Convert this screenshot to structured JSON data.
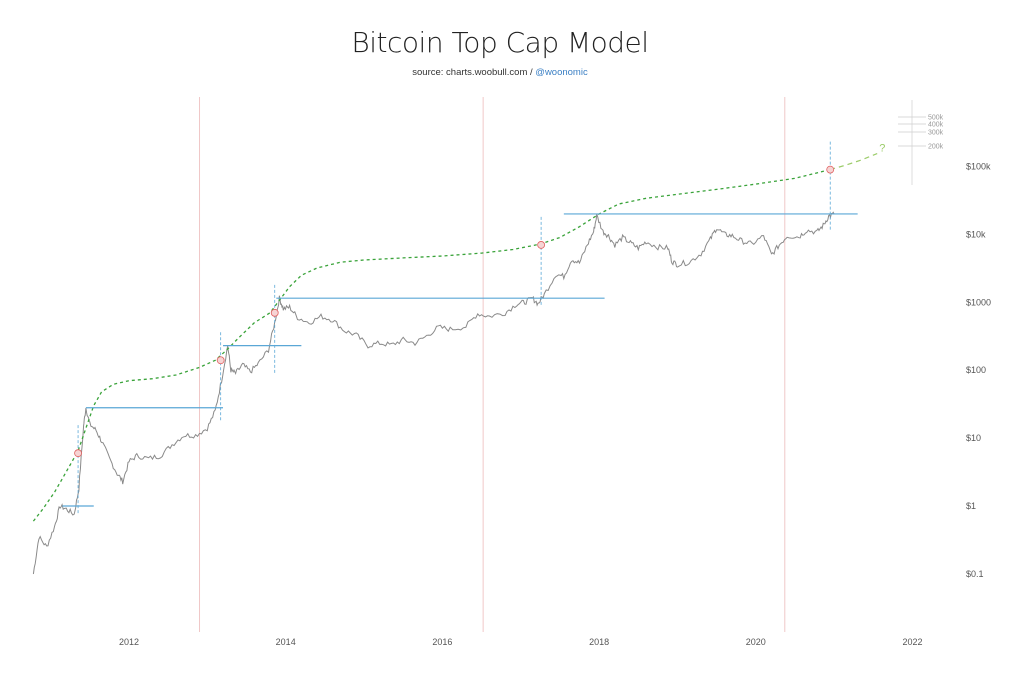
{
  "chart_data": {
    "type": "line",
    "title": "Bitcoin Top Cap Model",
    "subtitle_source": "source: charts.woobull.com /",
    "subtitle_handle": "@woonomic",
    "yscale": "log",
    "xlim": [
      2010.6,
      2022.4
    ],
    "ylim": [
      0.03,
      600000
    ],
    "x_ticks": [
      "2012",
      "2014",
      "2016",
      "2018",
      "2020",
      "2022"
    ],
    "x_tick_values": [
      2012,
      2014,
      2016,
      2018,
      2020,
      2022
    ],
    "y_ticks": [
      "$0.1",
      "$1",
      "$10",
      "$100",
      "$1000",
      "$10k",
      "$100k"
    ],
    "y_tick_values": [
      0.1,
      1,
      10,
      100,
      1000,
      10000,
      100000
    ],
    "projection_ticks": [
      "500k",
      "400k",
      "300k",
      "200k"
    ],
    "projection_tick_values": [
      500000,
      400000,
      300000,
      200000
    ],
    "projection_marker": "?",
    "grid": false,
    "halving_lines": [
      2012.9,
      2016.52,
      2020.37
    ],
    "colors": {
      "price": "#8a8a8a",
      "top_cap": "#3aa33a",
      "projection": "#9ccc6a",
      "resistance": "#5aa7d6",
      "halving": "#f0c8c8",
      "marker": "#e06060"
    },
    "series": [
      {
        "role": "price",
        "points": [
          [
            2010.78,
            0.1
          ],
          [
            2010.85,
            0.35
          ],
          [
            2010.95,
            0.25
          ],
          [
            2011.05,
            0.5
          ],
          [
            2011.12,
            1.0
          ],
          [
            2011.2,
            0.9
          ],
          [
            2011.3,
            0.75
          ],
          [
            2011.36,
            1.8
          ],
          [
            2011.42,
            15
          ],
          [
            2011.45,
            28
          ],
          [
            2011.5,
            16
          ],
          [
            2011.58,
            13
          ],
          [
            2011.65,
            9
          ],
          [
            2011.75,
            5
          ],
          [
            2011.85,
            3
          ],
          [
            2011.92,
            2.3
          ],
          [
            2012.0,
            4.5
          ],
          [
            2012.1,
            5.5
          ],
          [
            2012.25,
            5
          ],
          [
            2012.4,
            5.5
          ],
          [
            2012.55,
            8
          ],
          [
            2012.7,
            11
          ],
          [
            2012.85,
            11
          ],
          [
            2013.0,
            14
          ],
          [
            2013.1,
            25
          ],
          [
            2013.18,
            70
          ],
          [
            2013.26,
            230
          ],
          [
            2013.3,
            100
          ],
          [
            2013.36,
            90
          ],
          [
            2013.45,
            120
          ],
          [
            2013.55,
            95
          ],
          [
            2013.65,
            125
          ],
          [
            2013.78,
            200
          ],
          [
            2013.86,
            500
          ],
          [
            2013.92,
            1150
          ],
          [
            2013.97,
            800
          ],
          [
            2014.05,
            850
          ],
          [
            2014.15,
            600
          ],
          [
            2014.3,
            500
          ],
          [
            2014.45,
            620
          ],
          [
            2014.6,
            550
          ],
          [
            2014.75,
            380
          ],
          [
            2014.9,
            330
          ],
          [
            2015.05,
            230
          ],
          [
            2015.2,
            250
          ],
          [
            2015.35,
            235
          ],
          [
            2015.5,
            280
          ],
          [
            2015.65,
            250
          ],
          [
            2015.8,
            320
          ],
          [
            2015.95,
            430
          ],
          [
            2016.1,
            400
          ],
          [
            2016.3,
            440
          ],
          [
            2016.45,
            680
          ],
          [
            2016.6,
            620
          ],
          [
            2016.8,
            700
          ],
          [
            2016.95,
            950
          ],
          [
            2017.05,
            1000
          ],
          [
            2017.15,
            1150
          ],
          [
            2017.22,
            950
          ],
          [
            2017.3,
            1300
          ],
          [
            2017.45,
            2600
          ],
          [
            2017.55,
            2400
          ],
          [
            2017.65,
            4300
          ],
          [
            2017.75,
            3800
          ],
          [
            2017.85,
            7000
          ],
          [
            2017.93,
            11000
          ],
          [
            2017.97,
            19000
          ],
          [
            2018.05,
            11000
          ],
          [
            2018.12,
            9500
          ],
          [
            2018.2,
            7000
          ],
          [
            2018.3,
            9000
          ],
          [
            2018.4,
            7500
          ],
          [
            2018.5,
            6300
          ],
          [
            2018.6,
            7800
          ],
          [
            2018.75,
            6500
          ],
          [
            2018.88,
            6300
          ],
          [
            2018.93,
            4000
          ],
          [
            2019.0,
            3600
          ],
          [
            2019.15,
            3900
          ],
          [
            2019.3,
            5200
          ],
          [
            2019.42,
            8500
          ],
          [
            2019.5,
            12500
          ],
          [
            2019.6,
            10000
          ],
          [
            2019.7,
            9500
          ],
          [
            2019.82,
            8000
          ],
          [
            2019.95,
            7200
          ],
          [
            2020.1,
            9500
          ],
          [
            2020.2,
            5000
          ],
          [
            2020.3,
            7000
          ],
          [
            2020.4,
            9500
          ],
          [
            2020.55,
            9200
          ],
          [
            2020.65,
            11500
          ],
          [
            2020.78,
            10800
          ],
          [
            2020.86,
            13500
          ],
          [
            2020.93,
            18500
          ],
          [
            2021.0,
            20000
          ]
        ]
      },
      {
        "role": "top_cap",
        "points": [
          [
            2010.78,
            0.6
          ],
          [
            2010.9,
            0.9
          ],
          [
            2011.05,
            1.6
          ],
          [
            2011.2,
            3.2
          ],
          [
            2011.35,
            6.5
          ],
          [
            2011.45,
            14
          ],
          [
            2011.55,
            30
          ],
          [
            2011.65,
            48
          ],
          [
            2011.8,
            62
          ],
          [
            2012.0,
            70
          ],
          [
            2012.3,
            75
          ],
          [
            2012.6,
            85
          ],
          [
            2012.9,
            110
          ],
          [
            2013.1,
            140
          ],
          [
            2013.25,
            200
          ],
          [
            2013.4,
            300
          ],
          [
            2013.6,
            500
          ],
          [
            2013.8,
            700
          ],
          [
            2013.9,
            1000
          ],
          [
            2014.05,
            1700
          ],
          [
            2014.2,
            2500
          ],
          [
            2014.4,
            3200
          ],
          [
            2014.7,
            3900
          ],
          [
            2015.0,
            4200
          ],
          [
            2015.5,
            4500
          ],
          [
            2016.0,
            4800
          ],
          [
            2016.5,
            5300
          ],
          [
            2016.9,
            6000
          ],
          [
            2017.25,
            7200
          ],
          [
            2017.5,
            9000
          ],
          [
            2017.75,
            13000
          ],
          [
            2018.0,
            20000
          ],
          [
            2018.25,
            28000
          ],
          [
            2018.6,
            34000
          ],
          [
            2019.0,
            39000
          ],
          [
            2019.5,
            46000
          ],
          [
            2020.0,
            55000
          ],
          [
            2020.5,
            67000
          ],
          [
            2020.95,
            90000
          ]
        ]
      },
      {
        "role": "projection",
        "points": [
          [
            2020.95,
            90000
          ],
          [
            2021.15,
            105000
          ],
          [
            2021.35,
            125000
          ],
          [
            2021.55,
            155000
          ]
        ]
      }
    ],
    "cycle_tops": [
      [
        2011.35,
        6
      ],
      [
        2013.17,
        140
      ],
      [
        2013.86,
        700
      ],
      [
        2017.26,
        7000
      ],
      [
        2020.95,
        90000
      ]
    ],
    "resistance_levels": [
      {
        "price": 1,
        "from": 2011.15,
        "to": 2011.55
      },
      {
        "price": 28,
        "from": 2011.45,
        "to": 2013.2
      },
      {
        "price": 230,
        "from": 2013.2,
        "to": 2014.2
      },
      {
        "price": 1150,
        "from": 2013.88,
        "to": 2018.07
      },
      {
        "price": 20000,
        "from": 2017.55,
        "to": 2021.3
      }
    ]
  }
}
